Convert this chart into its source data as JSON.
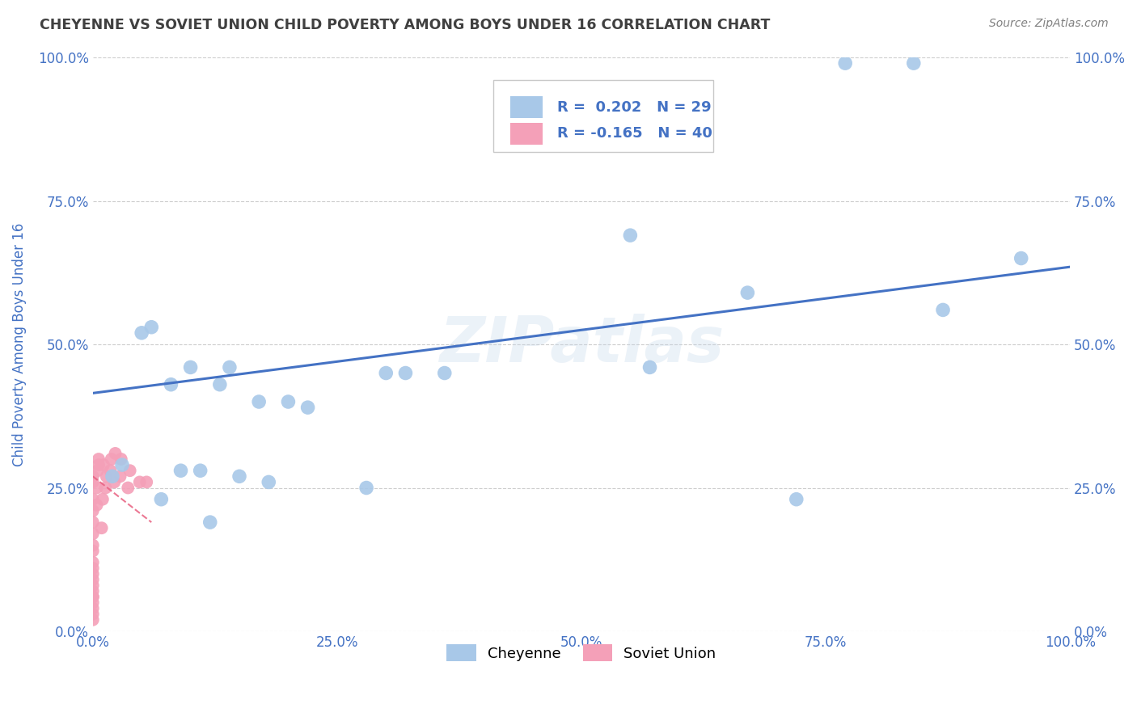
{
  "title": "CHEYENNE VS SOVIET UNION CHILD POVERTY AMONG BOYS UNDER 16 CORRELATION CHART",
  "source": "Source: ZipAtlas.com",
  "ylabel": "Child Poverty Among Boys Under 16",
  "xlim": [
    0.0,
    1.0
  ],
  "ylim": [
    0.0,
    1.0
  ],
  "xticks": [
    0.0,
    0.25,
    0.5,
    0.75,
    1.0
  ],
  "yticks": [
    0.0,
    0.25,
    0.5,
    0.75,
    1.0
  ],
  "xtick_labels": [
    "0.0%",
    "25.0%",
    "50.0%",
    "75.0%",
    "100.0%"
  ],
  "ytick_labels": [
    "0.0%",
    "25.0%",
    "50.0%",
    "75.0%",
    "100.0%"
  ],
  "cheyenne_color": "#a8c8e8",
  "soviet_color": "#f4a0b8",
  "trendline_cheyenne_color": "#4472c4",
  "trendline_soviet_color": "#e86080",
  "watermark": "ZIPatlas",
  "legend_r_cheyenne": "R =  0.202",
  "legend_n_cheyenne": "N = 29",
  "legend_r_soviet": "R = -0.165",
  "legend_n_soviet": "N = 40",
  "cheyenne_label": "Cheyenne",
  "soviet_label": "Soviet Union",
  "cheyenne_x": [
    0.02,
    0.03,
    0.05,
    0.06,
    0.07,
    0.08,
    0.09,
    0.1,
    0.11,
    0.12,
    0.13,
    0.14,
    0.15,
    0.17,
    0.18,
    0.2,
    0.22,
    0.28,
    0.3,
    0.32,
    0.36,
    0.55,
    0.57,
    0.67,
    0.72,
    0.77,
    0.84,
    0.87,
    0.95
  ],
  "cheyenne_y": [
    0.27,
    0.29,
    0.52,
    0.53,
    0.23,
    0.43,
    0.28,
    0.46,
    0.28,
    0.19,
    0.43,
    0.46,
    0.27,
    0.4,
    0.26,
    0.4,
    0.39,
    0.25,
    0.45,
    0.45,
    0.45,
    0.69,
    0.46,
    0.59,
    0.23,
    0.99,
    0.99,
    0.56,
    0.65
  ],
  "soviet_x": [
    0.0,
    0.0,
    0.0,
    0.0,
    0.0,
    0.0,
    0.0,
    0.0,
    0.0,
    0.0,
    0.0,
    0.0,
    0.0,
    0.0,
    0.0,
    0.0,
    0.0,
    0.0,
    0.0,
    0.0,
    0.004,
    0.004,
    0.005,
    0.006,
    0.006,
    0.009,
    0.01,
    0.011,
    0.013,
    0.014,
    0.018,
    0.019,
    0.022,
    0.023,
    0.028,
    0.029,
    0.036,
    0.038,
    0.048,
    0.055
  ],
  "soviet_y": [
    0.02,
    0.03,
    0.04,
    0.05,
    0.06,
    0.06,
    0.07,
    0.08,
    0.09,
    0.1,
    0.11,
    0.12,
    0.14,
    0.15,
    0.17,
    0.19,
    0.21,
    0.23,
    0.26,
    0.27,
    0.22,
    0.25,
    0.28,
    0.29,
    0.3,
    0.18,
    0.23,
    0.29,
    0.25,
    0.27,
    0.28,
    0.3,
    0.26,
    0.31,
    0.27,
    0.3,
    0.25,
    0.28,
    0.26,
    0.26
  ],
  "background_color": "#ffffff",
  "grid_color": "#c8c8c8",
  "title_color": "#404040",
  "axis_label_color": "#4472c4",
  "tick_color": "#4472c4",
  "trendline_cheyenne_start_x": 0.0,
  "trendline_cheyenne_start_y": 0.415,
  "trendline_cheyenne_end_x": 1.0,
  "trendline_cheyenne_end_y": 0.635,
  "trendline_soviet_start_x": 0.0,
  "trendline_soviet_start_y": 0.27,
  "trendline_soviet_end_x": 0.06,
  "trendline_soviet_end_y": 0.19
}
